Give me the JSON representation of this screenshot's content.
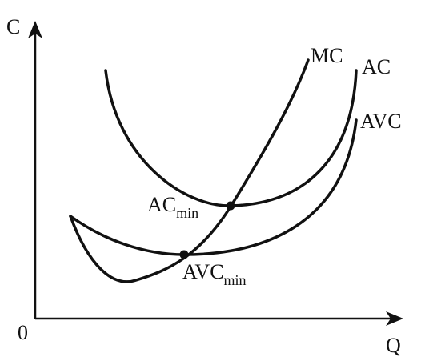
{
  "axes": {
    "y_label": "C",
    "x_label": "Q",
    "origin": "0"
  },
  "curves": [
    {
      "label": "MC"
    },
    {
      "label": "AC"
    },
    {
      "label": "AVC"
    }
  ],
  "points": [
    {
      "label": "AC",
      "subscript": "min"
    },
    {
      "label": "AVC",
      "subscript": "min"
    }
  ]
}
